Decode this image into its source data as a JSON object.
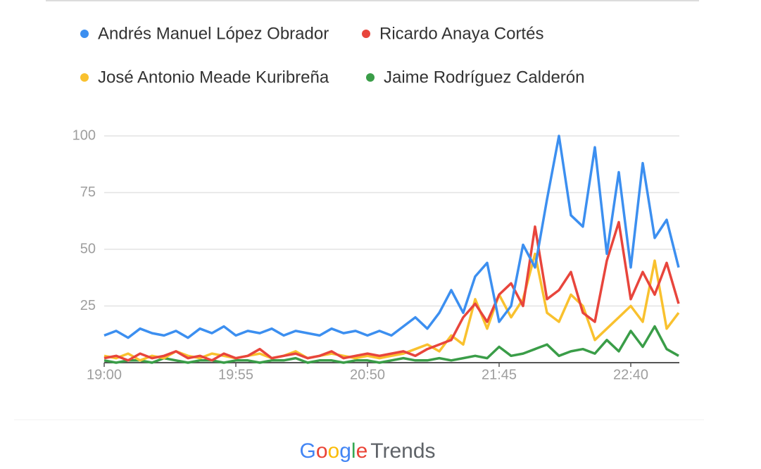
{
  "chart_data": {
    "type": "line",
    "x": [
      "19:00",
      "19:05",
      "19:10",
      "19:15",
      "19:20",
      "19:25",
      "19:30",
      "19:35",
      "19:40",
      "19:45",
      "19:50",
      "19:55",
      "20:00",
      "20:05",
      "20:10",
      "20:15",
      "20:20",
      "20:25",
      "20:30",
      "20:35",
      "20:40",
      "20:45",
      "20:50",
      "20:55",
      "21:00",
      "21:05",
      "21:10",
      "21:15",
      "21:20",
      "21:25",
      "21:30",
      "21:35",
      "21:40",
      "21:45",
      "21:50",
      "21:55",
      "22:00",
      "22:05",
      "22:10",
      "22:15",
      "22:20",
      "22:25",
      "22:30",
      "22:35",
      "22:40",
      "22:45",
      "22:50",
      "22:55",
      "23:00"
    ],
    "xticks": [
      "19:00",
      "19:55",
      "20:50",
      "21:45",
      "22:40"
    ],
    "ylim": [
      0,
      100
    ],
    "yticks": [
      25,
      50,
      75,
      100
    ],
    "grid": true,
    "series": [
      {
        "name": "Andrés Manuel López Obrador",
        "color": "#3c8ff0",
        "values": [
          12,
          14,
          11,
          15,
          13,
          12,
          14,
          11,
          15,
          13,
          16,
          12,
          14,
          13,
          15,
          12,
          14,
          13,
          12,
          15,
          13,
          14,
          12,
          14,
          12,
          16,
          20,
          15,
          22,
          32,
          22,
          38,
          44,
          18,
          25,
          52,
          42,
          72,
          100,
          65,
          60,
          95,
          48,
          84,
          42,
          88,
          55,
          63,
          42
        ]
      },
      {
        "name": "Ricardo Anaya Cortés",
        "color": "#e8453c",
        "values": [
          2,
          3,
          1,
          4,
          2,
          3,
          5,
          2,
          3,
          1,
          4,
          2,
          3,
          6,
          2,
          3,
          4,
          2,
          3,
          5,
          2,
          3,
          4,
          3,
          4,
          5,
          3,
          6,
          8,
          10,
          20,
          26,
          18,
          30,
          35,
          25,
          60,
          28,
          32,
          40,
          22,
          18,
          45,
          62,
          28,
          40,
          30,
          44,
          26
        ]
      },
      {
        "name": "José Antonio Meade Kuribreña",
        "color": "#f9c12e",
        "values": [
          3,
          2,
          4,
          1,
          3,
          2,
          5,
          3,
          2,
          4,
          3,
          2,
          3,
          4,
          2,
          3,
          5,
          2,
          3,
          4,
          3,
          2,
          3,
          2,
          3,
          4,
          6,
          8,
          5,
          12,
          8,
          28,
          15,
          30,
          20,
          28,
          48,
          22,
          18,
          30,
          25,
          10,
          15,
          20,
          25,
          18,
          45,
          15,
          22
        ]
      },
      {
        "name": "Jaime Rodríguez Calderón",
        "color": "#3a9d48",
        "values": [
          1,
          0,
          1,
          1,
          0,
          2,
          1,
          0,
          1,
          1,
          0,
          1,
          1,
          0,
          1,
          1,
          2,
          0,
          1,
          1,
          0,
          1,
          1,
          0,
          1,
          2,
          1,
          1,
          2,
          1,
          2,
          3,
          2,
          7,
          3,
          4,
          6,
          8,
          3,
          5,
          6,
          4,
          10,
          5,
          14,
          7,
          16,
          6,
          3
        ]
      }
    ],
    "logo_letters": [
      "G",
      "o",
      "o",
      "g",
      "l",
      "e"
    ],
    "logo_colors": [
      "#4285f4",
      "#ea4335",
      "#fbbc05",
      "#4285f4",
      "#34a853",
      "#ea4335"
    ],
    "logo_text": "Trends"
  }
}
